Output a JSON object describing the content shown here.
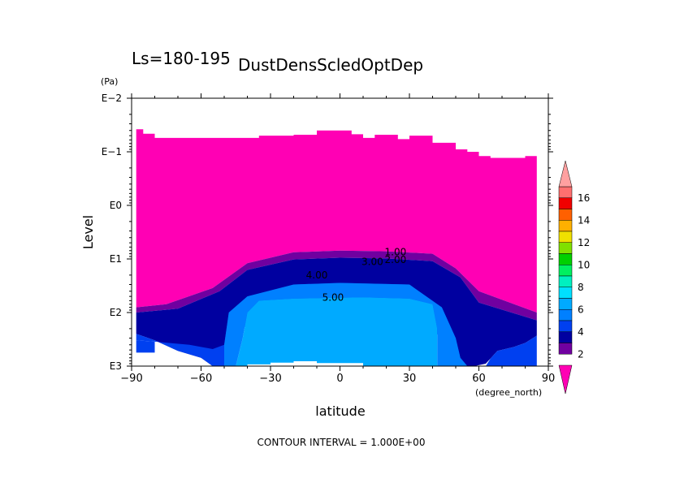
{
  "chart_data": {
    "type": "contour",
    "title": "DustDensScledOptDep",
    "subtitle": "Ls=180-195",
    "xlabel": "latitude",
    "x_units": "(degree_north)",
    "ylabel": "Level",
    "y_units": "(Pa)",
    "x_range": [
      -90,
      90
    ],
    "x_ticks": [
      -90,
      -60,
      -30,
      0,
      30,
      60,
      90
    ],
    "x_tick_labels": [
      "−90",
      "−60",
      "−30",
      "0",
      "30",
      "60",
      "90"
    ],
    "y_scale": "log",
    "y_range_pa": [
      1000,
      0.01
    ],
    "y_ticks": [
      {
        "value": 0.01,
        "label": "E−2"
      },
      {
        "value": 0.1,
        "label": "E−1"
      },
      {
        "value": 1,
        "label": "E0"
      },
      {
        "value": 10,
        "label": "E1"
      },
      {
        "value": 100,
        "label": "E2"
      },
      {
        "value": 1000,
        "label": "E3"
      }
    ],
    "contour_interval_text": "CONTOUR INTERVAL = 1.000E+00",
    "contour_labels": [
      {
        "text": "1.00",
        "lat": 24,
        "p": 8.5
      },
      {
        "text": "2.00",
        "lat": 24,
        "p": 12
      },
      {
        "text": "3.00",
        "lat": 14,
        "p": 13
      },
      {
        "text": "4.00",
        "lat": -10,
        "p": 23
      },
      {
        "text": "5.00",
        "lat": -3,
        "p": 60
      }
    ],
    "regions": [
      {
        "name": "level-1",
        "color": "#ff00b4",
        "pts": [
          [
            -88,
            0.038
          ],
          [
            -85,
            0.038
          ],
          [
            -85,
            0.046
          ],
          [
            -80,
            0.046
          ],
          [
            -80,
            0.055
          ],
          [
            -35,
            0.055
          ],
          [
            -35,
            0.05
          ],
          [
            -20,
            0.05
          ],
          [
            -20,
            0.048
          ],
          [
            -10,
            0.048
          ],
          [
            -10,
            0.04
          ],
          [
            -5,
            0.04
          ],
          [
            -5,
            0.04
          ],
          [
            5,
            0.04
          ],
          [
            5,
            0.047
          ],
          [
            10,
            0.047
          ],
          [
            10,
            0.055
          ],
          [
            15,
            0.055
          ],
          [
            15,
            0.048
          ],
          [
            25,
            0.048
          ],
          [
            25,
            0.058
          ],
          [
            30,
            0.058
          ],
          [
            30,
            0.05
          ],
          [
            40,
            0.05
          ],
          [
            40,
            0.068
          ],
          [
            50,
            0.068
          ],
          [
            50,
            0.09
          ],
          [
            55,
            0.09
          ],
          [
            55,
            0.1
          ],
          [
            60,
            0.1
          ],
          [
            60,
            0.12
          ],
          [
            65,
            0.12
          ],
          [
            65,
            0.13
          ],
          [
            80,
            0.13
          ],
          [
            80,
            0.12
          ],
          [
            85,
            0.12
          ],
          [
            85,
            100
          ],
          [
            60,
            40
          ],
          [
            50,
            15
          ],
          [
            40,
            8
          ],
          [
            20,
            7.2
          ],
          [
            0,
            7
          ],
          [
            -20,
            7.5
          ],
          [
            -40,
            12
          ],
          [
            -55,
            35
          ],
          [
            -75,
            70
          ],
          [
            -88,
            80
          ]
        ]
      },
      {
        "name": "level-2",
        "color": "#7000a0",
        "pts": [
          [
            -88,
            80
          ],
          [
            -75,
            70
          ],
          [
            -55,
            35
          ],
          [
            -40,
            12
          ],
          [
            -20,
            7.5
          ],
          [
            0,
            7
          ],
          [
            20,
            7.2
          ],
          [
            40,
            8
          ],
          [
            50,
            15
          ],
          [
            60,
            40
          ],
          [
            85,
            100
          ],
          [
            85,
            140
          ],
          [
            60,
            65
          ],
          [
            52,
            22
          ],
          [
            40,
            11
          ],
          [
            20,
            9.8
          ],
          [
            0,
            9.5
          ],
          [
            -20,
            10.2
          ],
          [
            -40,
            16
          ],
          [
            -52,
            40
          ],
          [
            -70,
            85
          ],
          [
            -88,
            100
          ]
        ]
      },
      {
        "name": "level-3",
        "color": "#0000a0",
        "pts": [
          [
            -88,
            100
          ],
          [
            -70,
            85
          ],
          [
            -52,
            40
          ],
          [
            -40,
            16
          ],
          [
            -20,
            10.2
          ],
          [
            0,
            9.5
          ],
          [
            20,
            9.8
          ],
          [
            40,
            11
          ],
          [
            52,
            22
          ],
          [
            60,
            65
          ],
          [
            85,
            140
          ],
          [
            85,
            270
          ],
          [
            80,
            370
          ],
          [
            75,
            440
          ],
          [
            68,
            520
          ],
          [
            65,
            720
          ],
          [
            63,
            900
          ],
          [
            58,
            1000
          ],
          [
            45,
            1000
          ],
          [
            45,
            800
          ],
          [
            44,
            400
          ],
          [
            40,
            160
          ],
          [
            30,
            130
          ],
          [
            10,
            120
          ],
          [
            -10,
            125
          ],
          [
            -30,
            140
          ],
          [
            -42,
            190
          ],
          [
            -45,
            300
          ],
          [
            -48,
            1000
          ],
          [
            -55,
            1000
          ],
          [
            -60,
            700
          ],
          [
            -70,
            520
          ],
          [
            -80,
            330
          ],
          [
            -88,
            250
          ]
        ]
      },
      {
        "name": "level-4",
        "color": "#0040f0",
        "pts": [
          [
            -88,
            250
          ],
          [
            -80,
            330
          ],
          [
            -70,
            520
          ],
          [
            -60,
            700
          ],
          [
            -55,
            1000
          ],
          [
            -48,
            1000
          ],
          [
            -45,
            300
          ],
          [
            -42,
            190
          ],
          [
            -30,
            140
          ],
          [
            -10,
            125
          ],
          [
            10,
            120
          ],
          [
            30,
            130
          ],
          [
            40,
            160
          ],
          [
            44,
            400
          ],
          [
            45,
            800
          ],
          [
            45,
            1000
          ],
          [
            55,
            1000
          ],
          [
            52,
            700
          ],
          [
            50,
            300
          ],
          [
            44,
            80
          ],
          [
            30,
            30
          ],
          [
            0,
            28
          ],
          [
            -20,
            30
          ],
          [
            -40,
            50
          ],
          [
            -48,
            100
          ],
          [
            -50,
            400
          ],
          [
            -55,
            480
          ],
          [
            -65,
            400
          ],
          [
            -80,
            350
          ],
          [
            -88,
            330
          ]
        ]
      },
      {
        "name": "level-4-right",
        "color": "#0040f0",
        "pts": [
          [
            85,
            270
          ],
          [
            85,
            1000
          ],
          [
            63,
            1000
          ],
          [
            65,
            720
          ],
          [
            68,
            520
          ],
          [
            75,
            440
          ],
          [
            80,
            370
          ]
        ]
      },
      {
        "name": "level-5",
        "color": "#0080ff",
        "pts": [
          [
            -50,
            400
          ],
          [
            -48,
            100
          ],
          [
            -40,
            50
          ],
          [
            -20,
            30
          ],
          [
            0,
            28
          ],
          [
            30,
            30
          ],
          [
            44,
            80
          ],
          [
            50,
            300
          ],
          [
            52,
            700
          ],
          [
            55,
            1000
          ],
          [
            42,
            1000
          ],
          [
            42,
            200
          ],
          [
            40,
            70
          ],
          [
            30,
            55
          ],
          [
            10,
            52
          ],
          [
            -20,
            55
          ],
          [
            -35,
            60
          ],
          [
            -40,
            100
          ],
          [
            -42,
            300
          ],
          [
            -45,
            1000
          ],
          [
            -50,
            1000
          ]
        ]
      },
      {
        "name": "level-6",
        "color": "#00aaff",
        "pts": [
          [
            -45,
            1000
          ],
          [
            -42,
            300
          ],
          [
            -40,
            100
          ],
          [
            -35,
            60
          ],
          [
            -20,
            55
          ],
          [
            10,
            52
          ],
          [
            30,
            55
          ],
          [
            40,
            70
          ],
          [
            42,
            200
          ],
          [
            42,
            1000
          ],
          [
            10,
            1000
          ],
          [
            10,
            880
          ],
          [
            -10,
            880
          ],
          [
            -10,
            810
          ],
          [
            -20,
            810
          ],
          [
            -20,
            860
          ],
          [
            -30,
            860
          ],
          [
            -30,
            930
          ],
          [
            -40,
            930
          ],
          [
            -40,
            1000
          ]
        ]
      },
      {
        "name": "level-4-left-corner",
        "color": "#0040f0",
        "pts": [
          [
            -88,
            330
          ],
          [
            -80,
            350
          ],
          [
            -80,
            560
          ],
          [
            -85,
            560
          ],
          [
            -88,
            560
          ]
        ]
      }
    ],
    "colorbar": {
      "labels": [
        "2",
        "4",
        "6",
        "8",
        "10",
        "12",
        "14",
        "16"
      ],
      "colors": [
        "#ff00b4",
        "#7000a0",
        "#0000a0",
        "#0040f0",
        "#0080ff",
        "#00aaff",
        "#00e0ff",
        "#00f0c0",
        "#00f060",
        "#00d000",
        "#80e000",
        "#f0e000",
        "#ffb000",
        "#ff6000",
        "#f00000",
        "#ff7070",
        "#ffa0a0"
      ]
    }
  }
}
